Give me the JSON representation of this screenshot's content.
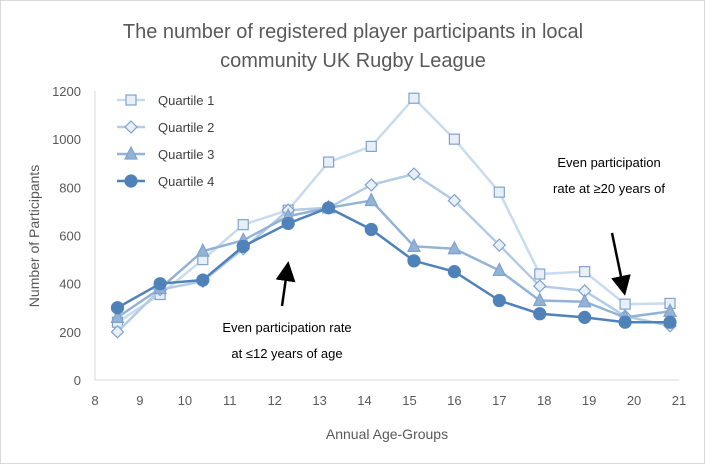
{
  "chart_data": {
    "type": "line",
    "title": [
      "The number of registered player participants in local",
      "community UK Rugby League"
    ],
    "xlabel": "Annual Age-Groups",
    "ylabel": "Number of Participants",
    "xlim": [
      8,
      21
    ],
    "ylim": [
      0,
      1200
    ],
    "xticks": [
      "8",
      "9",
      "10",
      "11",
      "12",
      "13",
      "14",
      "15",
      "16",
      "17",
      "18",
      "19",
      "20",
      "21"
    ],
    "yticks": [
      "0",
      "200",
      "400",
      "600",
      "800",
      "1000",
      "1200"
    ],
    "grid": false,
    "legend_position": "top-left",
    "x": [
      8.5,
      9.45,
      10.4,
      11.3,
      12.3,
      13.2,
      14.15,
      15.1,
      16.0,
      17.0,
      17.9,
      18.9,
      19.8,
      20.8
    ],
    "series": [
      {
        "name": "Quartile 1",
        "marker": "square",
        "color": "#c9dbee",
        "values": [
          240,
          355,
          500,
          645,
          705,
          905,
          970,
          1170,
          1000,
          780,
          440,
          450,
          315,
          318
        ]
      },
      {
        "name": "Quartile 2",
        "marker": "diamond",
        "color": "#b3cbe5",
        "values": [
          200,
          375,
          410,
          545,
          705,
          715,
          810,
          855,
          745,
          560,
          390,
          370,
          265,
          225
        ]
      },
      {
        "name": "Quartile 3",
        "marker": "triangle",
        "color": "#93b3d6",
        "values": [
          260,
          380,
          535,
          580,
          680,
          715,
          745,
          555,
          545,
          455,
          330,
          325,
          260,
          285
        ]
      },
      {
        "name": "Quartile 4",
        "marker": "circle",
        "color": "#4f82b8",
        "values": [
          300,
          400,
          415,
          555,
          650,
          715,
          625,
          495,
          450,
          330,
          275,
          260,
          240,
          240
        ]
      }
    ],
    "annotations": [
      {
        "lines": [
          "Even participation rate",
          "at ≤12 years of age"
        ],
        "arrow_to": [
          12.3,
          650
        ]
      },
      {
        "lines": [
          "Even participation",
          "rate at ≥20 years of"
        ],
        "arrow_to": [
          19.8,
          280
        ]
      }
    ]
  }
}
